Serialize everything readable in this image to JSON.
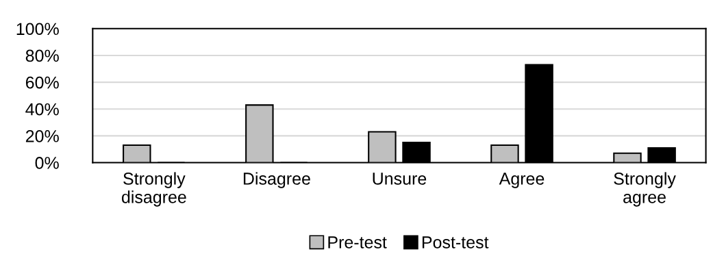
{
  "chart_data": {
    "type": "bar",
    "categories": [
      "Strongly\ndisagree",
      "Disagree",
      "Unsure",
      "Agree",
      "Strongly\nagree"
    ],
    "series": [
      {
        "name": "Pre-test",
        "color": "#bfbfbf",
        "values": [
          13,
          43,
          23,
          13,
          7
        ]
      },
      {
        "name": "Post-test",
        "color": "#000000",
        "values": [
          0,
          0,
          15,
          73,
          11
        ]
      }
    ],
    "ylim": [
      0,
      100
    ],
    "yticks": [
      {
        "value": 0,
        "label": "0%"
      },
      {
        "value": 20,
        "label": "20%"
      },
      {
        "value": 40,
        "label": "40%"
      },
      {
        "value": 60,
        "label": "60%"
      },
      {
        "value": 80,
        "label": "80%"
      },
      {
        "value": 100,
        "label": "100%"
      }
    ],
    "grid": "y",
    "legend": "bottom"
  }
}
